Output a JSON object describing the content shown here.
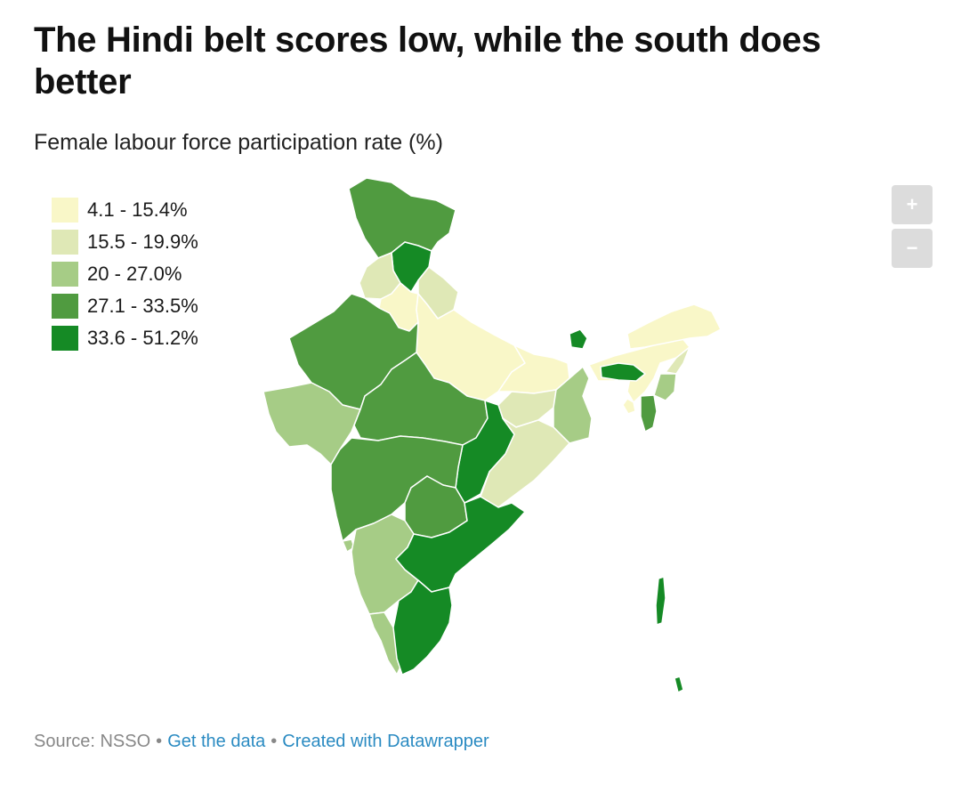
{
  "header": {
    "title": "The Hindi belt scores low, while the south does better",
    "subtitle": "Female labour force participation rate (%)"
  },
  "legend": {
    "items": [
      {
        "label": "4.1 - 15.4%",
        "color": "#f9f7c8"
      },
      {
        "label": "15.5 - 19.9%",
        "color": "#dfe8b6"
      },
      {
        "label": "20 - 27.0%",
        "color": "#a6cc86"
      },
      {
        "label": "27.1 - 33.5%",
        "color": "#509b40"
      },
      {
        "label": "33.6 - 51.2%",
        "color": "#158a25"
      }
    ]
  },
  "controls": {
    "zoom_in_icon": "+",
    "zoom_out_icon": "−"
  },
  "footer": {
    "source": "Source: NSSO",
    "sep1": "•",
    "link_data": "Get the data",
    "sep2": "•",
    "link_credit": "Created with Datawrapper"
  }
}
